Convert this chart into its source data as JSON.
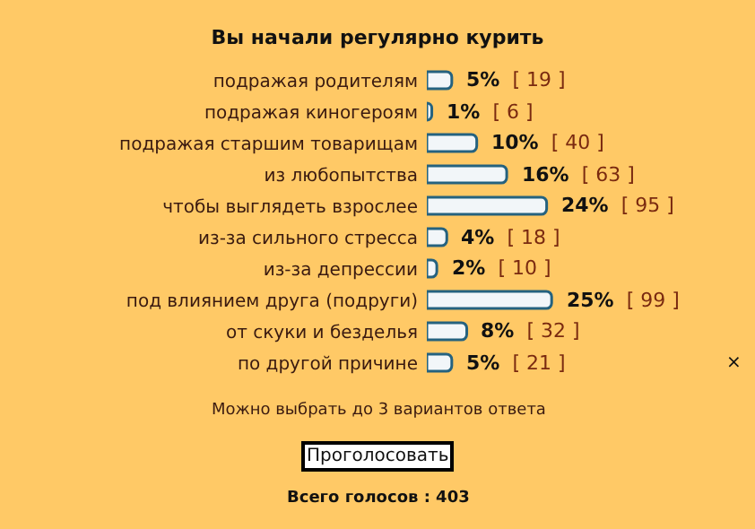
{
  "chart_data": {
    "type": "bar",
    "orientation": "horizontal",
    "title": "Вы начали регулярно курить",
    "categories": [
      "подражая родителям",
      "подражая киногероям",
      "подражая старшим товарищам",
      "из любопытства",
      "чтобы выглядеть взрослее",
      "из-за сильного стресса",
      "из-за депрессии",
      "под влиянием друга (подруги)",
      "от скуки и безделья",
      "по другой причине"
    ],
    "values": [
      5,
      1,
      10,
      16,
      24,
      4,
      2,
      25,
      8,
      5
    ],
    "value_labels": [
      "5% [ 19 ]",
      "1% [ 6 ]",
      "10% [ 40 ]",
      "16% [ 63 ]",
      "24% [ 95 ]",
      "4% [ 18 ]",
      "2% [ 10 ]",
      "25% [ 99 ]",
      "8% [ 32 ]",
      "5% [ 21 ]"
    ],
    "color": "#f2f6f9",
    "tick_labels": "y",
    "grid": false,
    "legend": false,
    "annotations": [
      "Можно выбрать до 3 вариантов ответа",
      "Проголосовать",
      "Всего голосов : 403",
      "×"
    ]
  }
}
